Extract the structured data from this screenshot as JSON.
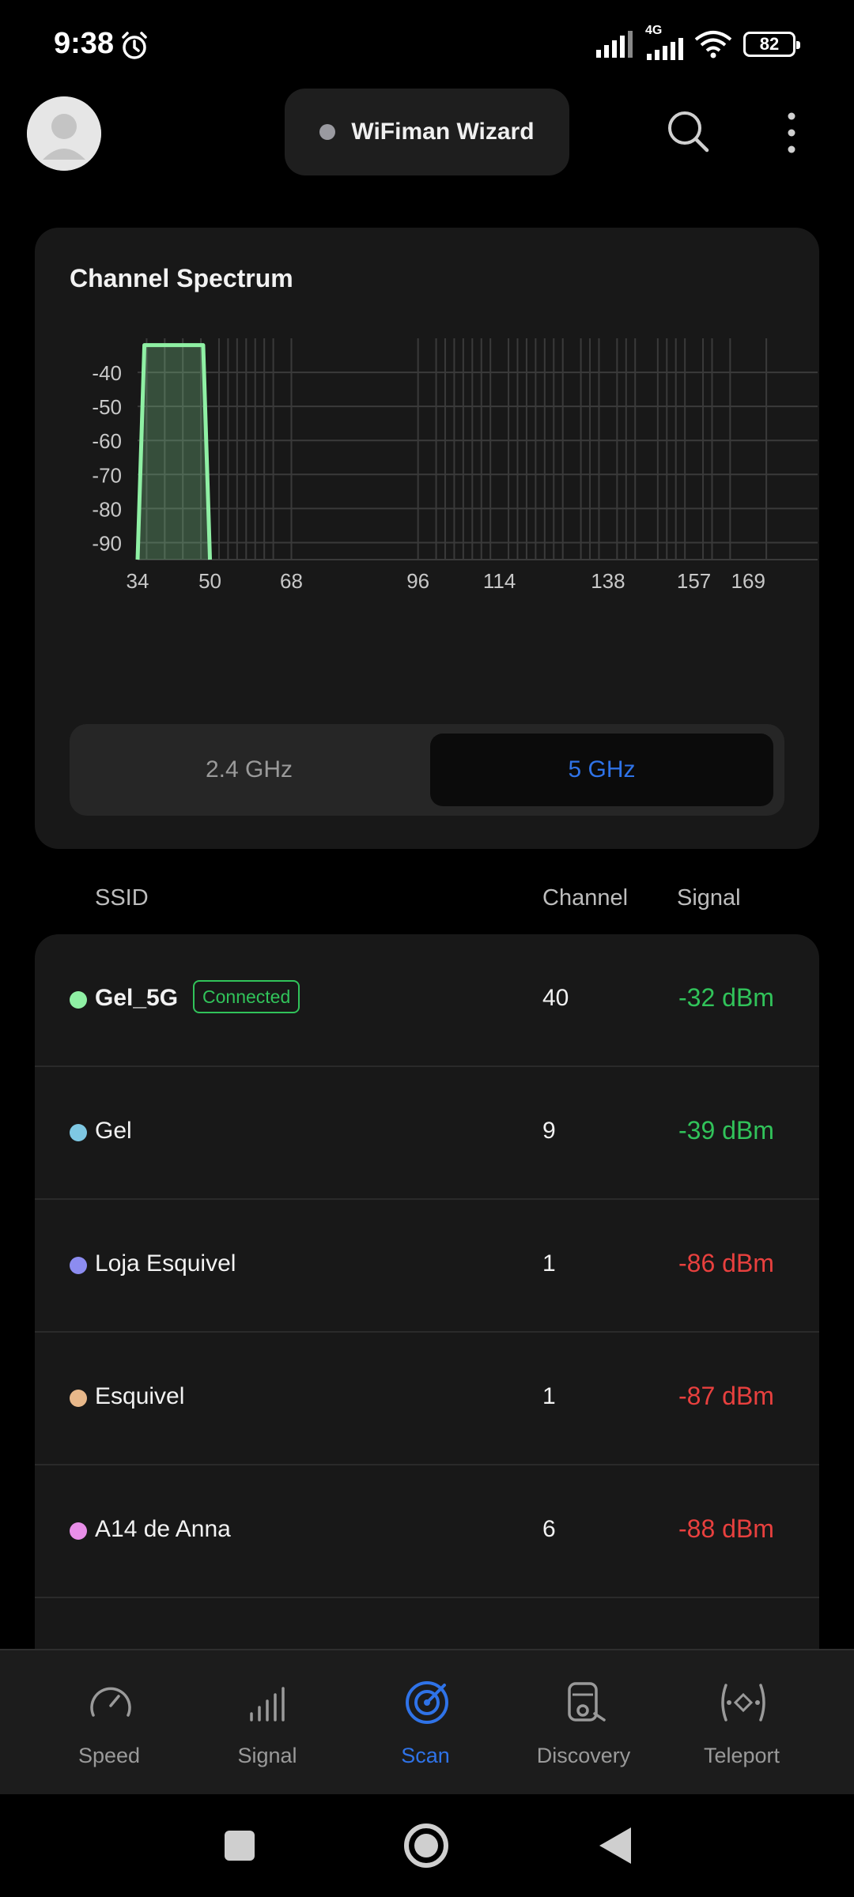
{
  "status_bar": {
    "time": "9:38",
    "network_type": "4G",
    "battery": "82"
  },
  "header": {
    "app_title": "WiFiman Wizard"
  },
  "spectrum": {
    "title": "Channel Spectrum",
    "band_options": [
      "2.4 GHz",
      "5 GHz"
    ],
    "selected_band": "5 GHz"
  },
  "chart_data": {
    "type": "area",
    "title": "Channel Spectrum",
    "xlabel": "",
    "ylabel": "",
    "x_ticks": [
      "34",
      "50",
      "68",
      "96",
      "114",
      "138",
      "157",
      "169"
    ],
    "y_ticks": [
      "-40",
      "-50",
      "-60",
      "-70",
      "-80",
      "-90"
    ],
    "ylim": [
      -95,
      -30
    ],
    "xlim": [
      34,
      177
    ],
    "grid": true,
    "channel_grid": [
      36,
      40,
      44,
      48,
      52,
      54,
      56,
      58,
      60,
      62,
      64,
      68,
      96,
      100,
      102,
      104,
      106,
      108,
      110,
      112,
      116,
      118,
      120,
      122,
      124,
      126,
      128,
      132,
      134,
      136,
      140,
      142,
      144,
      149,
      151,
      153,
      155,
      159,
      161,
      165,
      173
    ],
    "series": [
      {
        "name": "Gel_5G",
        "color": "#8ff0a4",
        "channel": 40,
        "signal_dbm": -32,
        "x": [
          34,
          35.5,
          48.5,
          50
        ],
        "y": [
          -95,
          -32,
          -32,
          -95
        ]
      }
    ]
  },
  "list_header": {
    "ssid": "SSID",
    "channel": "Channel",
    "signal": "Signal"
  },
  "networks": [
    {
      "ssid": "Gel_5G",
      "badge": "Connected",
      "channel": "40",
      "signal": "-32 dBm",
      "dot_color": "#8ff0a4",
      "signal_quality": "good"
    },
    {
      "ssid": "Gel",
      "badge": "",
      "channel": "9",
      "signal": "-39 dBm",
      "dot_color": "#7ec8e3",
      "signal_quality": "good"
    },
    {
      "ssid": "Loja Esquivel",
      "badge": "",
      "channel": "1",
      "signal": "-86 dBm",
      "dot_color": "#8c8cf0",
      "signal_quality": "bad"
    },
    {
      "ssid": "Esquivel",
      "badge": "",
      "channel": "1",
      "signal": "-87 dBm",
      "dot_color": "#e8b88a",
      "signal_quality": "bad"
    },
    {
      "ssid": "A14 de Anna",
      "badge": "",
      "channel": "6",
      "signal": "-88 dBm",
      "dot_color": "#e88ee8",
      "signal_quality": "bad"
    }
  ],
  "bottom_nav": [
    {
      "label": "Speed",
      "icon": "speedometer-icon",
      "active": false
    },
    {
      "label": "Signal",
      "icon": "signal-bars-icon",
      "active": false
    },
    {
      "label": "Scan",
      "icon": "radar-icon",
      "active": true
    },
    {
      "label": "Discovery",
      "icon": "device-search-icon",
      "active": false
    },
    {
      "label": "Teleport",
      "icon": "teleport-icon",
      "active": false
    }
  ],
  "colors": {
    "accent": "#2f73e8",
    "good": "#31c35a",
    "bad": "#e8403e"
  }
}
